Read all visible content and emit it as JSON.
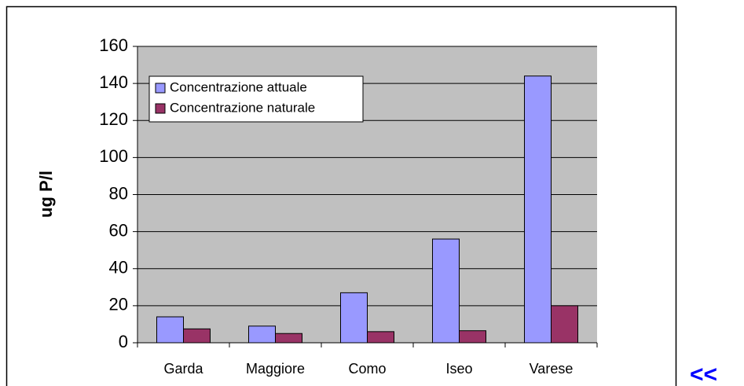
{
  "chart_data": {
    "type": "bar",
    "y_label": "ug P/l",
    "categories": [
      "Garda",
      "Maggiore",
      "Como",
      "Iseo",
      "Varese"
    ],
    "series": [
      {
        "name": "Concentrazione attuale",
        "color": "#9999ff",
        "values": [
          14,
          9,
          27,
          56,
          144
        ]
      },
      {
        "name": "Concentrazione naturale",
        "color": "#993366",
        "values": [
          7.5,
          5,
          6,
          6.5,
          20
        ]
      }
    ],
    "ylim": [
      0,
      160
    ],
    "yticks": [
      0,
      20,
      40,
      60,
      80,
      100,
      120,
      140,
      160
    ],
    "grid": true,
    "legend": "upper left",
    "plot_background": "#c0c0c0"
  },
  "nav_label": "<<"
}
